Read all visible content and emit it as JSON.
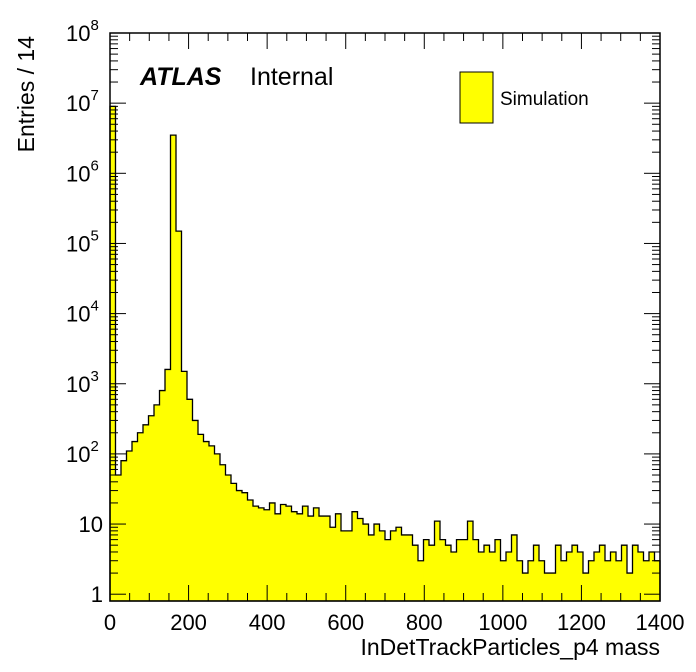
{
  "chart_data": {
    "type": "bar",
    "xlabel": "InDetTrackParticles_p4 mass",
    "ylabel": "Entries / 14",
    "xlim": [
      0,
      1400
    ],
    "ylim": [
      0.8,
      100000000
    ],
    "log_y": true,
    "grid": false,
    "bin_width": 14,
    "fill_color": "#ffff00",
    "line_color": "#000000",
    "x_ticks": [
      "0",
      "200",
      "400",
      "600",
      "800",
      "1000",
      "1200",
      "1400"
    ],
    "y_ticks": [
      {
        "base": "1",
        "exp": ""
      },
      {
        "base": "10",
        "exp": ""
      },
      {
        "base": "10",
        "exp": "2"
      },
      {
        "base": "10",
        "exp": "3"
      },
      {
        "base": "10",
        "exp": "4"
      },
      {
        "base": "10",
        "exp": "5"
      },
      {
        "base": "10",
        "exp": "6"
      },
      {
        "base": "10",
        "exp": "7"
      },
      {
        "base": "10",
        "exp": "8"
      }
    ],
    "legend": {
      "position": "top-right",
      "entries": [
        "Simulation"
      ]
    },
    "label": {
      "atlas": "ATLAS",
      "status": "Internal"
    },
    "series": [
      {
        "name": "Simulation",
        "values": [
          9000000,
          50,
          80,
          110,
          150,
          200,
          260,
          350,
          500,
          800,
          1600,
          3500000,
          150000,
          1500,
          600,
          300,
          190,
          150,
          130,
          100,
          70,
          50,
          38,
          30,
          28,
          22,
          18,
          17,
          16,
          20,
          14,
          19,
          18,
          15,
          14,
          18,
          13,
          17,
          13,
          13,
          9,
          14,
          8,
          8,
          15,
          12,
          10,
          7,
          10,
          8,
          6,
          8,
          9,
          7,
          7,
          5,
          3,
          6,
          5,
          11,
          6,
          5,
          4,
          6,
          6,
          11,
          6,
          4,
          5,
          4,
          6,
          3,
          4,
          7,
          3,
          2,
          3,
          5,
          3,
          2,
          2,
          5,
          3,
          4,
          5,
          4,
          2,
          3,
          4,
          5,
          3,
          4,
          3,
          5,
          2,
          5,
          4,
          3,
          4,
          3
        ]
      }
    ]
  }
}
